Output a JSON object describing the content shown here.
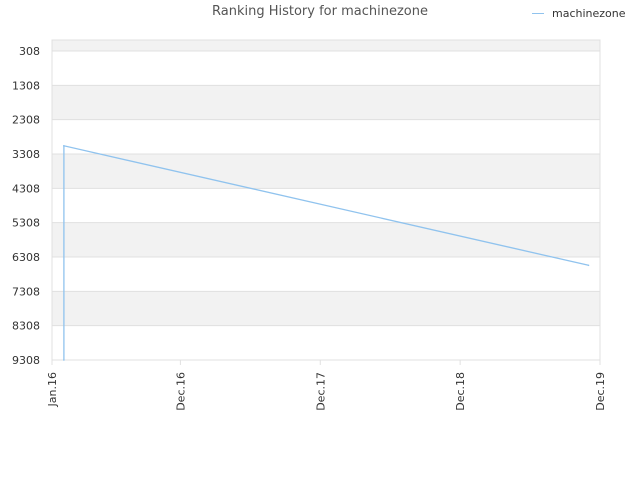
{
  "chart_data": {
    "type": "line",
    "title": "Ranking History for machinezone",
    "xlabel": "",
    "ylabel": "",
    "y_reversed": true,
    "y_ticks": [
      "308",
      "1308",
      "2308",
      "3308",
      "4308",
      "5308",
      "6308",
      "7308",
      "8308",
      "9308"
    ],
    "x_ticks": [
      "Jan.16",
      "Dec.16",
      "Dec.17",
      "Dec.18",
      "Dec.19"
    ],
    "ylim": [
      308,
      9308
    ],
    "xlim": [
      "2016-01-01",
      "2019-12-01"
    ],
    "grid": true,
    "legend_position": "top-right",
    "series": [
      {
        "name": "machinezone",
        "color": "#90c3ee",
        "points": [
          {
            "x": "2016-02-01",
            "y": 9308
          },
          {
            "x": "2016-02-01",
            "y": 3070
          },
          {
            "x": "2019-11-01",
            "y": 6550
          }
        ]
      }
    ]
  },
  "colors": {
    "band": "#f2f2f2",
    "grid": "#e0e0e0",
    "axis_text": "#333333"
  }
}
